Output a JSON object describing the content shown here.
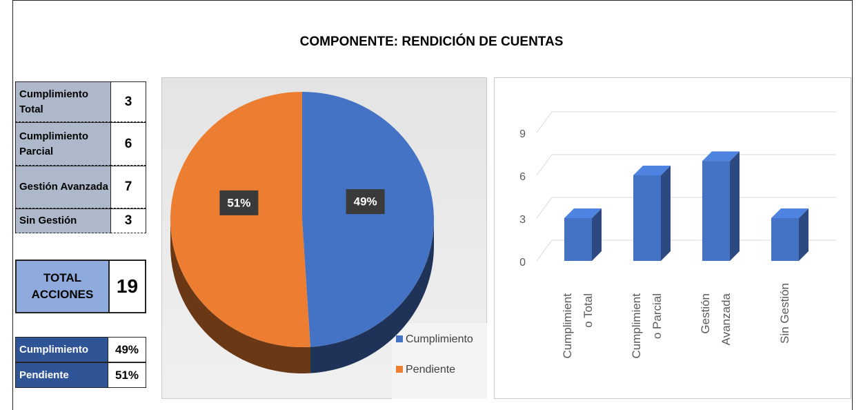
{
  "title": "COMPONENTE: RENDICIÓN DE CUENTAS",
  "summary": {
    "rows": [
      [
        "Cumplimiento Total",
        3
      ],
      [
        "Cumplimiento Parcial",
        6
      ],
      [
        "Gestión Avanzada",
        7
      ],
      [
        "Sin Gestión",
        3
      ]
    ]
  },
  "total": {
    "label": "TOTAL ACCIONES",
    "value": 19
  },
  "status": {
    "rows": [
      [
        "Cumplimiento",
        "49%"
      ],
      [
        "Pendiente",
        "51%"
      ]
    ]
  },
  "chart_data": [
    {
      "type": "pie",
      "categories": [
        "Cumplimiento",
        "Pendiente"
      ],
      "values": [
        49,
        51
      ],
      "value_labels": [
        "49%",
        "51%"
      ],
      "colors": [
        "#4472c4",
        "#ed7d31"
      ]
    },
    {
      "type": "bar",
      "categories": [
        "Cumplimiento Total",
        "Cumplimiento Parcial",
        "Gestión Avanzada",
        "Sin Gestión"
      ],
      "values": [
        3,
        6,
        7,
        3
      ],
      "color": "#4472c4",
      "ylim": [
        0,
        9
      ],
      "yticks": [
        0,
        3,
        6,
        9
      ],
      "grid": true
    }
  ]
}
